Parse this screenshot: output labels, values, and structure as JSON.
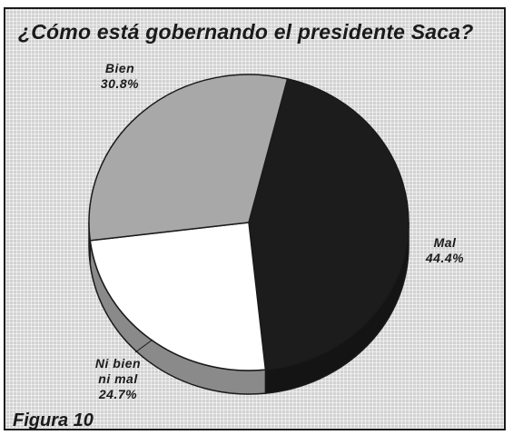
{
  "chart_data": {
    "type": "pie",
    "title": "¿Cómo está gobernando el presidente Saca?",
    "figure_label": "Figura 10",
    "slices": [
      {
        "label": "Mal",
        "value": 44.4,
        "value_text": "44.4%",
        "color": "#1c1c1c"
      },
      {
        "label": "Ni bien ni mal",
        "label_lines": [
          "Ni bien",
          "ni mal"
        ],
        "value": 24.7,
        "value_text": "24.7%",
        "color": "#ffffff"
      },
      {
        "label": "Bien",
        "value": 30.8,
        "value_text": "30.8%",
        "color": "#a8a8a8"
      }
    ]
  }
}
